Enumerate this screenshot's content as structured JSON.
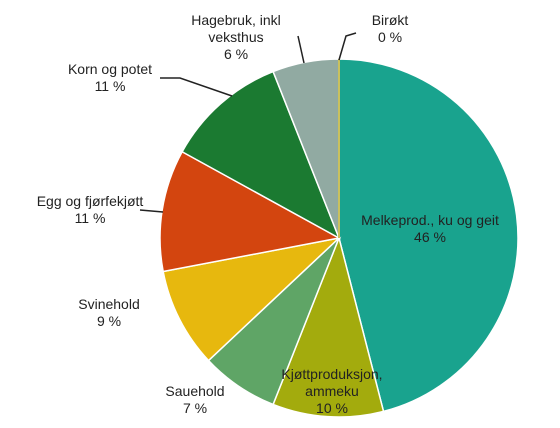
{
  "chart_data": {
    "type": "pie",
    "categories": [
      "Melkeprod., ku og geit",
      "Kjøttproduksjon, ammeku",
      "Sauehold",
      "Svinehold",
      "Egg og fjørfekjøtt",
      "Korn og potet",
      "Hagebruk, inkl veksthus",
      "Birøkt"
    ],
    "values": [
      46,
      10,
      7,
      9,
      11,
      11,
      6,
      0
    ],
    "value_labels": [
      "46 %",
      "10 %",
      "7 %",
      "9 %",
      "11 %",
      "11 %",
      "6 %",
      "0 %"
    ],
    "colors": [
      "#19a38e",
      "#a3ab0d",
      "#5fa566",
      "#e7b80e",
      "#d3450f",
      "#1b7a31",
      "#91aaa2",
      "#c9c15e"
    ]
  }
}
